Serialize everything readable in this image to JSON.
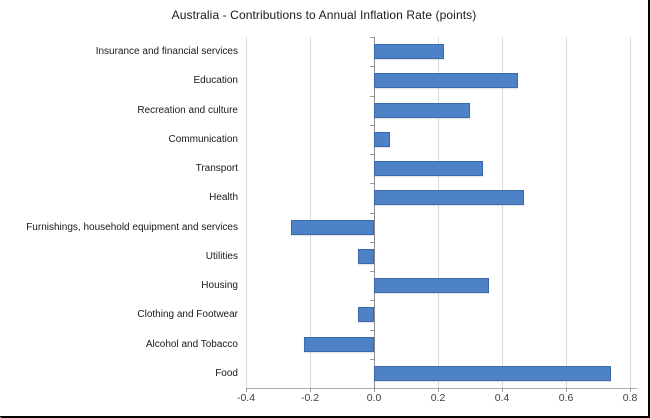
{
  "chart_data": {
    "type": "bar",
    "orientation": "horizontal",
    "title": "Australia - Contributions to Annual Inflation Rate (points)",
    "categories": [
      "Insurance and financial services",
      "Education",
      "Recreation and culture",
      "Communication",
      "Transport",
      "Health",
      "Furnishings, household equipment and services",
      "Utilities",
      "Housing",
      "Clothing and Footwear",
      "Alcohol and Tobacco",
      "Food"
    ],
    "values": [
      0.22,
      0.45,
      0.3,
      0.05,
      0.34,
      0.47,
      -0.26,
      -0.05,
      0.36,
      -0.05,
      -0.22,
      0.74
    ],
    "xlabel": "",
    "ylabel": "",
    "xlim": [
      -0.4,
      0.8
    ],
    "xticks": [
      -0.4,
      -0.2,
      0,
      0.2,
      0.4,
      0.6,
      0.8
    ],
    "xtick_labels": [
      "-0.4",
      "-0.2",
      "0.0",
      "0.2",
      "0.4",
      "0.6",
      "0.8"
    ],
    "grid": true,
    "legend": "none",
    "bar_color": "#4e82c6",
    "bar_border_color": "#3b69ae",
    "gridline_color": "#d9d9d9",
    "zero_axis_color": "#8c8c8c",
    "axis_line_color": "#ababab",
    "background_color": "#ffffff",
    "frame_border_color": "#000000"
  }
}
